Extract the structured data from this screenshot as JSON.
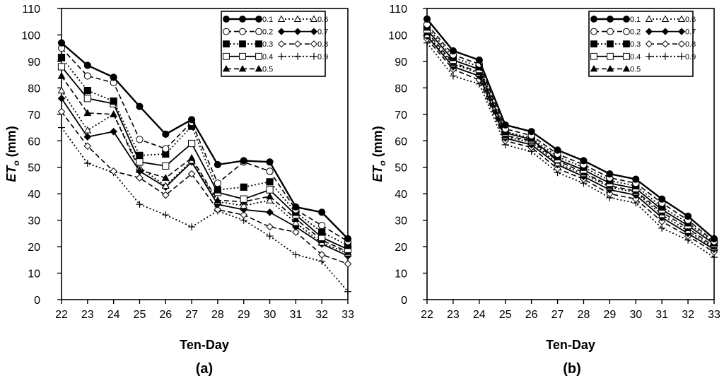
{
  "chart_data": [
    {
      "type": "line",
      "panel_label": "(a)",
      "xlabel": "Ten-Day",
      "ylabel_main": "ET",
      "ylabel_sub": "o",
      "ylabel_unit": " (mm)",
      "ylim": [
        0,
        110
      ],
      "y_ticks": [
        0,
        10,
        20,
        30,
        40,
        50,
        60,
        70,
        80,
        90,
        100,
        110
      ],
      "x": [
        22,
        23,
        24,
        25,
        26,
        27,
        28,
        29,
        30,
        31,
        32,
        33
      ],
      "legend_position": "top-right",
      "series": [
        {
          "name": "0.1",
          "marker": "circle-filled",
          "line": "solid-bold",
          "values": [
            97,
            88.5,
            84,
            73,
            62.5,
            68,
            51,
            52.5,
            52,
            35,
            33,
            23
          ]
        },
        {
          "name": "0.2",
          "marker": "circle-open",
          "line": "dash",
          "values": [
            95,
            84.5,
            82,
            60.5,
            57,
            67,
            44,
            52,
            48.5,
            34,
            28,
            22
          ]
        },
        {
          "name": "0.3",
          "marker": "square-filled",
          "line": "dot",
          "values": [
            91.5,
            79,
            75,
            54.5,
            55,
            65.5,
            41.5,
            42.5,
            44.5,
            33,
            25.5,
            20.5
          ]
        },
        {
          "name": "0.4",
          "marker": "square-open",
          "line": "solid",
          "values": [
            88,
            76,
            74,
            52,
            50.5,
            59,
            40.5,
            38,
            41.5,
            32,
            23.5,
            19
          ]
        },
        {
          "name": "0.5",
          "marker": "triangle-filled",
          "line": "dash",
          "values": [
            84.5,
            70.5,
            70,
            49,
            46,
            53.5,
            37.5,
            37,
            39,
            30.5,
            22.5,
            18
          ]
        },
        {
          "name": "0.6",
          "marker": "triangle-open",
          "line": "dot",
          "values": [
            79,
            64,
            70,
            50,
            43,
            52.5,
            37,
            35.5,
            37.5,
            29,
            21.5,
            17.5
          ]
        },
        {
          "name": "0.7",
          "marker": "diamond-filled",
          "line": "solid",
          "values": [
            76,
            61.5,
            63.5,
            48.5,
            42.5,
            52,
            36,
            34,
            33,
            27.5,
            21,
            16.5
          ]
        },
        {
          "name": "0.8",
          "marker": "diamond-open",
          "line": "dash",
          "values": [
            71,
            58,
            48.5,
            46,
            39.5,
            47.5,
            34,
            32,
            27.5,
            25.5,
            17,
            13.5
          ]
        },
        {
          "name": "0.9",
          "marker": "plus",
          "line": "dot",
          "values": [
            65,
            51.5,
            48,
            36,
            32,
            27.5,
            33.5,
            30,
            24,
            17,
            14.5,
            3
          ]
        }
      ]
    },
    {
      "type": "line",
      "panel_label": "(b)",
      "xlabel": "Ten-Day",
      "ylabel_main": "ET",
      "ylabel_sub": "o",
      "ylabel_unit": " (mm)",
      "ylim": [
        0,
        110
      ],
      "y_ticks": [
        0,
        10,
        20,
        30,
        40,
        50,
        60,
        70,
        80,
        90,
        100,
        110
      ],
      "x": [
        22,
        23,
        24,
        25,
        26,
        27,
        28,
        29,
        30,
        31,
        32,
        33
      ],
      "legend_position": "top-right",
      "series": [
        {
          "name": "0.1",
          "marker": "circle-filled",
          "line": "solid-bold",
          "values": [
            106,
            94,
            90.5,
            66,
            63.5,
            56.5,
            52.5,
            47.5,
            45.5,
            38,
            31.5,
            23
          ]
        },
        {
          "name": "0.2",
          "marker": "circle-open",
          "line": "dash",
          "values": [
            104,
            92.5,
            89,
            64.5,
            62,
            55,
            51,
            46,
            44,
            36.5,
            30,
            22
          ]
        },
        {
          "name": "0.3",
          "marker": "square-filled",
          "line": "dot",
          "values": [
            103,
            91.5,
            88,
            63.5,
            61,
            54,
            50,
            45,
            43,
            35,
            29,
            21.5
          ]
        },
        {
          "name": "0.4",
          "marker": "square-open",
          "line": "solid",
          "values": [
            102,
            90.5,
            87,
            63,
            60.5,
            53,
            49,
            44,
            42,
            34,
            28,
            21
          ]
        },
        {
          "name": "0.5",
          "marker": "triangle-filled",
          "line": "dash",
          "values": [
            101,
            89.5,
            86,
            62,
            60,
            52.5,
            48,
            43,
            41,
            33,
            27,
            20
          ]
        },
        {
          "name": "0.6",
          "marker": "triangle-open",
          "line": "dot",
          "values": [
            100,
            89,
            85.5,
            61.5,
            59.5,
            51.5,
            47.5,
            42.5,
            40.5,
            32,
            26,
            19.5
          ]
        },
        {
          "name": "0.7",
          "marker": "diamond-filled",
          "line": "solid",
          "values": [
            99.5,
            88,
            84.5,
            61,
            58.5,
            51,
            46.5,
            41.5,
            39.5,
            31,
            25,
            19
          ]
        },
        {
          "name": "0.8",
          "marker": "diamond-open",
          "line": "dash",
          "values": [
            98.5,
            87,
            83,
            60,
            57.5,
            49.5,
            45.5,
            40,
            38,
            29.5,
            24,
            18
          ]
        },
        {
          "name": "0.9",
          "marker": "plus",
          "line": "dot",
          "values": [
            97,
            84.5,
            81.5,
            58.5,
            56,
            48,
            44,
            38.5,
            36.5,
            27,
            22.5,
            16
          ]
        }
      ]
    }
  ]
}
